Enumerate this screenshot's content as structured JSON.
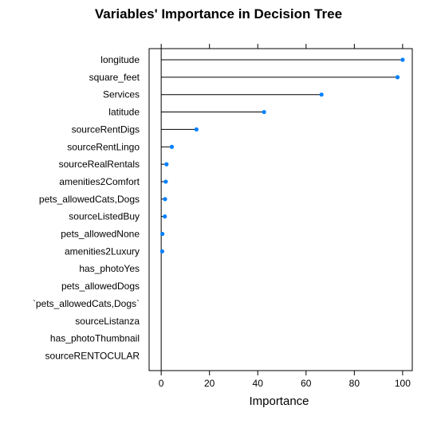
{
  "chart_data": {
    "type": "dot",
    "title": "Variables' Importance in Decision Tree",
    "xlabel": "Importance",
    "ylabel": "",
    "xlim": [
      -5,
      104
    ],
    "xticks": [
      0,
      20,
      40,
      60,
      80,
      100
    ],
    "xtick_labels": [
      "0",
      "20",
      "40",
      "60",
      "80",
      "100"
    ],
    "grid": false,
    "legend": "none",
    "point_color": "#0080ff",
    "line_color": "#000000",
    "categories": [
      "longitude",
      "square_feet",
      "Services",
      "latitude",
      "sourceRentDigs",
      "sourceRentLingo",
      "sourceRealRentals",
      "amenities2Comfort",
      "pets_allowedCats,Dogs",
      "sourceListedBuy",
      "pets_allowedNone",
      "amenities2Luxury",
      "has_photoYes",
      "pets_allowedDogs",
      "`pets_allowedCats,Dogs`",
      "sourceListanza",
      "has_photoThumbnail",
      "sourceRENTOCULAR"
    ],
    "values": [
      100,
      97.9,
      66.4,
      42.6,
      14.6,
      4.4,
      2.2,
      1.9,
      1.6,
      1.5,
      0.5,
      0.4,
      null,
      null,
      null,
      null,
      null,
      null
    ]
  }
}
